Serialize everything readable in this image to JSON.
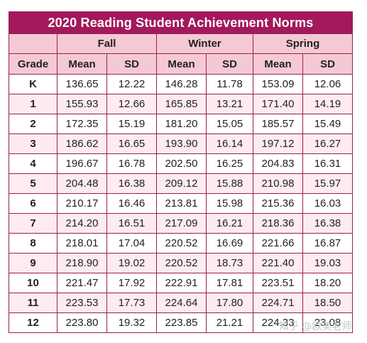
{
  "title": "2020 Reading Student Achievement Norms",
  "seasons": [
    "Fall",
    "Winter",
    "Spring"
  ],
  "headers": {
    "grade": "Grade",
    "mean": "Mean",
    "sd": "SD"
  },
  "rows": [
    {
      "grade": "K",
      "fall_mean": "136.65",
      "fall_sd": "12.22",
      "winter_mean": "146.28",
      "winter_sd": "11.78",
      "spring_mean": "153.09",
      "spring_sd": "12.06"
    },
    {
      "grade": "1",
      "fall_mean": "155.93",
      "fall_sd": "12.66",
      "winter_mean": "165.85",
      "winter_sd": "13.21",
      "spring_mean": "171.40",
      "spring_sd": "14.19"
    },
    {
      "grade": "2",
      "fall_mean": "172.35",
      "fall_sd": "15.19",
      "winter_mean": "181.20",
      "winter_sd": "15.05",
      "spring_mean": "185.57",
      "spring_sd": "15.49"
    },
    {
      "grade": "3",
      "fall_mean": "186.62",
      "fall_sd": "16.65",
      "winter_mean": "193.90",
      "winter_sd": "16.14",
      "spring_mean": "197.12",
      "spring_sd": "16.27"
    },
    {
      "grade": "4",
      "fall_mean": "196.67",
      "fall_sd": "16.78",
      "winter_mean": "202.50",
      "winter_sd": "16.25",
      "spring_mean": "204.83",
      "spring_sd": "16.31"
    },
    {
      "grade": "5",
      "fall_mean": "204.48",
      "fall_sd": "16.38",
      "winter_mean": "209.12",
      "winter_sd": "15.88",
      "spring_mean": "210.98",
      "spring_sd": "15.97"
    },
    {
      "grade": "6",
      "fall_mean": "210.17",
      "fall_sd": "16.46",
      "winter_mean": "213.81",
      "winter_sd": "15.98",
      "spring_mean": "215.36",
      "spring_sd": "16.03"
    },
    {
      "grade": "7",
      "fall_mean": "214.20",
      "fall_sd": "16.51",
      "winter_mean": "217.09",
      "winter_sd": "16.21",
      "spring_mean": "218.36",
      "spring_sd": "16.38"
    },
    {
      "grade": "8",
      "fall_mean": "218.01",
      "fall_sd": "17.04",
      "winter_mean": "220.52",
      "winter_sd": "16.69",
      "spring_mean": "221.66",
      "spring_sd": "16.87"
    },
    {
      "grade": "9",
      "fall_mean": "218.90",
      "fall_sd": "19.02",
      "winter_mean": "220.52",
      "winter_sd": "18.73",
      "spring_mean": "221.40",
      "spring_sd": "19.03"
    },
    {
      "grade": "10",
      "fall_mean": "221.47",
      "fall_sd": "17.92",
      "winter_mean": "222.91",
      "winter_sd": "17.81",
      "spring_mean": "223.51",
      "spring_sd": "18.20"
    },
    {
      "grade": "11",
      "fall_mean": "223.53",
      "fall_sd": "17.73",
      "winter_mean": "224.64",
      "winter_sd": "17.80",
      "spring_mean": "224.71",
      "spring_sd": "18.50"
    },
    {
      "grade": "12",
      "fall_mean": "223.80",
      "fall_sd": "19.32",
      "winter_mean": "223.85",
      "winter_sd": "21.21",
      "spring_mean": "224.33",
      "spring_sd": "23.08"
    }
  ],
  "watermark": "知乎 @欧美老师",
  "colors": {
    "title_bg": "#a3195b",
    "header_bg": "#f5c9d4",
    "stripe": "#fdebef",
    "border": "#9a1f55"
  }
}
